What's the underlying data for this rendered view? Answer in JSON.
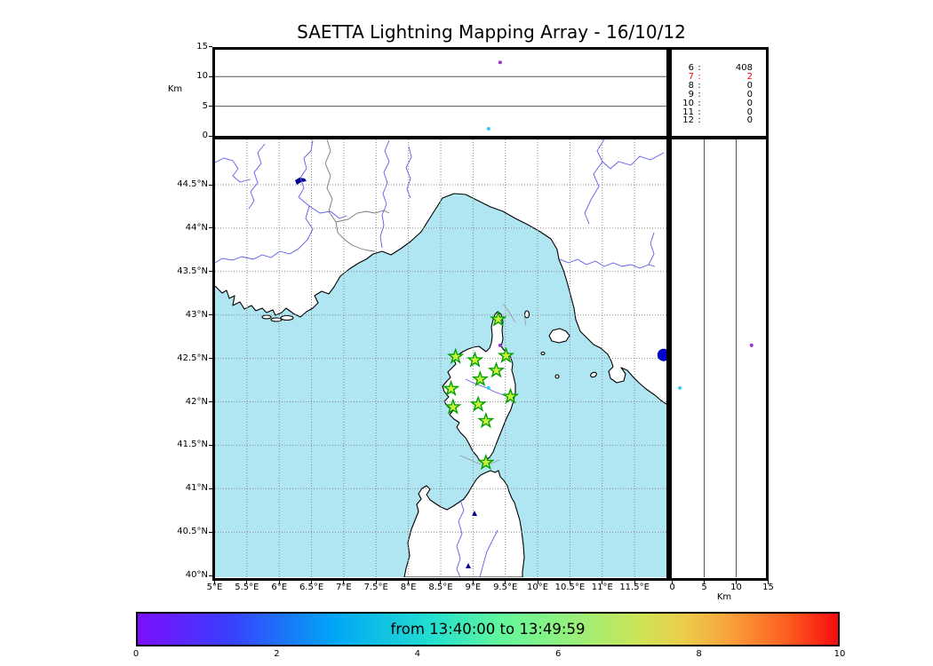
{
  "title": "SAETTA Lightning Mapping Array - 16/10/12",
  "top_panel": {
    "ylabel": "Km",
    "yticks": [
      0,
      5,
      10,
      15
    ]
  },
  "right_panel": {
    "xlabel": "Km",
    "xticks": [
      0,
      5,
      10,
      15
    ]
  },
  "map": {
    "lat_ticks": [
      {
        "v": 44.5,
        "label": "44.5°N"
      },
      {
        "v": 44.0,
        "label": "44°N"
      },
      {
        "v": 43.5,
        "label": "43.5°N"
      },
      {
        "v": 43.0,
        "label": "43°N"
      },
      {
        "v": 42.5,
        "label": "42.5°N"
      },
      {
        "v": 42.0,
        "label": "42°N"
      },
      {
        "v": 41.5,
        "label": "41.5°N"
      },
      {
        "v": 41.0,
        "label": "41°N"
      },
      {
        "v": 40.5,
        "label": "40.5°N"
      },
      {
        "v": 40.0,
        "label": "40°N"
      }
    ],
    "lon_ticks": [
      {
        "v": 5.0,
        "label": "5°E"
      },
      {
        "v": 5.5,
        "label": "5.5°E"
      },
      {
        "v": 6.0,
        "label": "6°E"
      },
      {
        "v": 6.5,
        "label": "6.5°E"
      },
      {
        "v": 7.0,
        "label": "7°E"
      },
      {
        "v": 7.5,
        "label": "7.5°E"
      },
      {
        "v": 8.0,
        "label": "8°E"
      },
      {
        "v": 8.5,
        "label": "8.5°E"
      },
      {
        "v": 9.0,
        "label": "9°E"
      },
      {
        "v": 9.5,
        "label": "9.5°E"
      },
      {
        "v": 10.0,
        "label": "10°E"
      },
      {
        "v": 10.5,
        "label": "10.5°E"
      },
      {
        "v": 11.0,
        "label": "11°E"
      },
      {
        "v": 11.5,
        "label": "11.5°E"
      }
    ]
  },
  "stats": {
    "rows": [
      {
        "n": "6",
        "v": "408",
        "color": "#000000"
      },
      {
        "n": "7",
        "v": "2",
        "color": "#ff0000"
      },
      {
        "n": "8",
        "v": "0",
        "color": "#000000"
      },
      {
        "n": "9",
        "v": "0",
        "color": "#000000"
      },
      {
        "n": "10",
        "v": "0",
        "color": "#000000"
      },
      {
        "n": "11",
        "v": "0",
        "color": "#000000"
      },
      {
        "n": "12",
        "v": "0",
        "color": "#000000"
      }
    ]
  },
  "colorbar": {
    "label": "from 13:40:00 to 13:49:59",
    "ticks": [
      0,
      2,
      4,
      6,
      8,
      10
    ],
    "range": [
      0,
      10
    ]
  },
  "chart_data": {
    "type": "scatter",
    "title": "SAETTA Lightning Mapping Array - 16/10/12",
    "time_window": {
      "from": "13:40:00",
      "to": "13:49:59"
    },
    "map_axes": {
      "lon_range": [
        5.0,
        12.0
      ],
      "lat_range": [
        40.0,
        45.05
      ],
      "grid_step_deg": 0.5,
      "grid": "dotted"
    },
    "altitude_axes": {
      "range_km": [
        0,
        15
      ],
      "ticks": [
        0,
        5,
        10,
        15
      ],
      "label": "Km",
      "inner_gridlines_km": [
        5,
        10
      ]
    },
    "stations": [
      {
        "lon": 9.39,
        "lat": 42.95
      },
      {
        "lon": 8.73,
        "lat": 42.52
      },
      {
        "lon": 9.03,
        "lat": 42.48
      },
      {
        "lon": 9.51,
        "lat": 42.53
      },
      {
        "lon": 9.36,
        "lat": 42.36
      },
      {
        "lon": 9.11,
        "lat": 42.26
      },
      {
        "lon": 8.66,
        "lat": 42.15
      },
      {
        "lon": 9.58,
        "lat": 42.06
      },
      {
        "lon": 8.69,
        "lat": 41.94
      },
      {
        "lon": 9.08,
        "lat": 41.97
      },
      {
        "lon": 9.2,
        "lat": 41.78
      },
      {
        "lon": 9.2,
        "lat": 41.3
      }
    ],
    "sources": [
      {
        "lon": 9.42,
        "lat": 42.65,
        "alt_km": 12.4,
        "color": "#9933cc",
        "r": 2,
        "panels": [
          "map",
          "top",
          "right"
        ]
      },
      {
        "lon": 9.24,
        "lat": 42.16,
        "alt_km": 1.2,
        "color": "#33ccee",
        "r": 2,
        "panels": [
          "map",
          "top",
          "right"
        ]
      },
      {
        "lon": 11.95,
        "lat": 42.54,
        "alt_km": 0,
        "color": "#0000cc",
        "r": 7,
        "panels": [
          "map"
        ]
      }
    ],
    "station_counts": [
      {
        "min_stations": 6,
        "count": 408,
        "highlighted": false
      },
      {
        "min_stations": 7,
        "count": 2,
        "highlighted": true
      },
      {
        "min_stations": 8,
        "count": 0,
        "highlighted": false
      },
      {
        "min_stations": 9,
        "count": 0,
        "highlighted": false
      },
      {
        "min_stations": 10,
        "count": 0,
        "highlighted": false
      },
      {
        "min_stations": 11,
        "count": 0,
        "highlighted": false
      },
      {
        "min_stations": 12,
        "count": 0,
        "highlighted": false
      }
    ]
  }
}
